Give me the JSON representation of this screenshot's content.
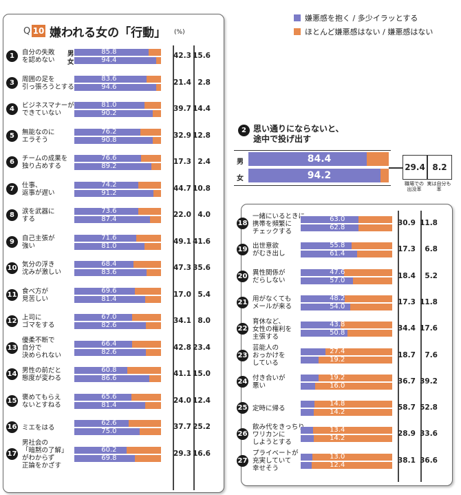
{
  "header": {
    "q_prefix": "Q",
    "q_number": "10",
    "title": "嫌われる女の「行動」",
    "unit": "(%)"
  },
  "legend": [
    {
      "label": "嫌悪感を抱く / 多少イラッとする",
      "color": "#7b7bc7"
    },
    {
      "label": "ほとんど嫌悪感はない / 嫌悪感はない",
      "color": "#e88a4e"
    }
  ],
  "sex_labels": {
    "male": "男",
    "female": "女"
  },
  "item2": {
    "badge": "2",
    "title": "思い通りにならないと、\n途中で投げ出す",
    "male": 84.4,
    "female": 94.2,
    "stat1": "29.4",
    "stat2": "8.2",
    "stat1_label": "職場での\n出没率",
    "stat2_label": "実は自分も\n率"
  },
  "chart_data": {
    "type": "bar",
    "title": "嫌われる女の「行動」",
    "ylabel": "",
    "xlim": [
      0,
      100
    ],
    "legend_position": "top-right",
    "series": [
      {
        "name": "嫌悪感を抱く / 多少イラッとする"
      },
      {
        "name": "ほとんど嫌悪感はない / 嫌悪感はない"
      }
    ],
    "items": [
      {
        "id": "1",
        "label": "自分の失敗\nを認めない",
        "male": 85.8,
        "female": 94.4,
        "stat1": "42.3",
        "stat2": "15.6"
      },
      {
        "id": "3",
        "label": "周囲の足を\n引っ張ろうとする",
        "male": 83.6,
        "female": 94.6,
        "stat1": "21.4",
        "stat2": "2.8"
      },
      {
        "id": "4",
        "label": "ビジネスマナーが\nできていない",
        "male": 81.0,
        "female": 90.2,
        "stat1": "39.7",
        "stat2": "14.4"
      },
      {
        "id": "5",
        "label": "無能なのに\nエラそう",
        "male": 76.2,
        "female": 90.8,
        "stat1": "32.9",
        "stat2": "12.8"
      },
      {
        "id": "6",
        "label": "チームの成果を\n独り占めする",
        "male": 76.6,
        "female": 89.2,
        "stat1": "17.3",
        "stat2": "2.4"
      },
      {
        "id": "7",
        "label": "仕事、\n返事が遅い",
        "male": 74.2,
        "female": 91.2,
        "stat1": "44.7",
        "stat2": "10.8"
      },
      {
        "id": "8",
        "label": "涙を武器に\nする",
        "male": 73.6,
        "female": 87.4,
        "stat1": "22.0",
        "stat2": "4.0"
      },
      {
        "id": "9",
        "label": "自己主張が\n強い",
        "male": 71.6,
        "female": 81.0,
        "stat1": "49.1",
        "stat2": "41.6"
      },
      {
        "id": "10",
        "label": "気分の浮き\n沈みが激しい",
        "male": 68.4,
        "female": 83.6,
        "stat1": "47.3",
        "stat2": "35.6"
      },
      {
        "id": "11",
        "label": "食べ方が\n見苦しい",
        "male": 69.6,
        "female": 81.4,
        "stat1": "17.0",
        "stat2": "5.4"
      },
      {
        "id": "12",
        "label": "上司に\nゴマをする",
        "male": 67.0,
        "female": 82.6,
        "stat1": "34.1",
        "stat2": "8.0"
      },
      {
        "id": "13",
        "label": "優柔不断で\n自分で\n決められない",
        "male": 66.4,
        "female": 82.6,
        "stat1": "42.8",
        "stat2": "23.4"
      },
      {
        "id": "14",
        "label": "男性の前だと\n態度が変わる",
        "male": 60.8,
        "female": 86.6,
        "stat1": "41.1",
        "stat2": "15.0"
      },
      {
        "id": "15",
        "label": "褒めてもらえ\nないとすねる",
        "male": 65.6,
        "female": 81.4,
        "stat1": "24.0",
        "stat2": "12.4"
      },
      {
        "id": "16",
        "label": "ミエをはる",
        "male": 62.6,
        "female": 75.0,
        "stat1": "37.7",
        "stat2": "25.2"
      },
      {
        "id": "17",
        "label": "男社会の\n「暗黙の了解」\nがわからず\n正論をかざす",
        "male": 60.2,
        "female": 69.8,
        "stat1": "29.3",
        "stat2": "16.6"
      },
      {
        "id": "18",
        "label": "一緒にいるときに\n携帯を頻繁に\nチェックする",
        "male": 63.0,
        "female": 62.8,
        "stat1": "30.9",
        "stat2": "11.8"
      },
      {
        "id": "19",
        "label": "出世意欲\nがむき出し",
        "male": 55.8,
        "female": 61.4,
        "stat1": "17.3",
        "stat2": "6.8"
      },
      {
        "id": "20",
        "label": "異性関係が\nだらしない",
        "male": 47.6,
        "female": 57.0,
        "stat1": "18.4",
        "stat2": "5.2"
      },
      {
        "id": "21",
        "label": "用がなくても\nメールが来る",
        "male": 48.2,
        "female": 54.0,
        "stat1": "17.3",
        "stat2": "11.8"
      },
      {
        "id": "22",
        "label": "育休など、\n女性の権利を\n主張する",
        "male": 43.8,
        "female": 50.8,
        "stat1": "34.4",
        "stat2": "17.6"
      },
      {
        "id": "23",
        "label": "芸能人の\nおっかけを\nしている",
        "male": 27.4,
        "female": 19.2,
        "stat1": "18.7",
        "stat2": "7.6"
      },
      {
        "id": "24",
        "label": "付き合いが\n悪い",
        "male": 19.2,
        "female": 16.0,
        "stat1": "36.7",
        "stat2": "39.2"
      },
      {
        "id": "25",
        "label": "定時に帰る",
        "male": 14.8,
        "female": 14.2,
        "stat1": "58.7",
        "stat2": "52.8"
      },
      {
        "id": "26",
        "label": "飲み代をきっちり\nワリカンに\nしようとする",
        "male": 13.4,
        "female": 14.2,
        "stat1": "28.9",
        "stat2": "33.6"
      },
      {
        "id": "27",
        "label": "プライベートが\n充実していて\n幸せそう",
        "male": 13.0,
        "female": 12.4,
        "stat1": "38.1",
        "stat2": "36.6"
      }
    ]
  }
}
